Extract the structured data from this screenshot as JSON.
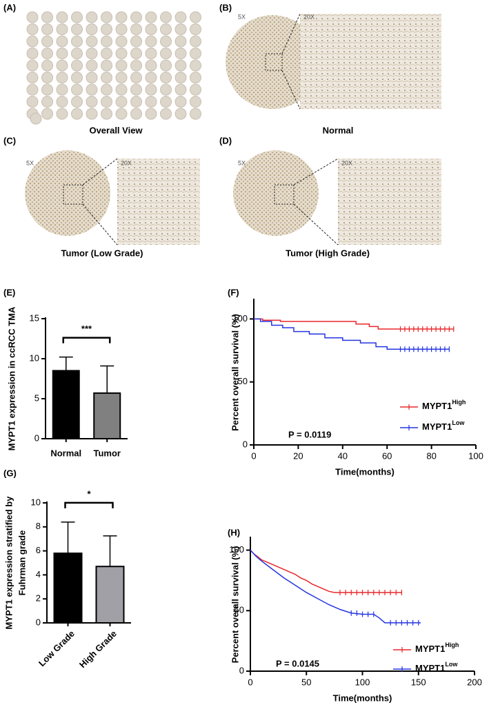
{
  "panels": [
    {
      "label": "(A)",
      "caption": "Overall View"
    },
    {
      "label": "(B)",
      "caption": "Normal",
      "magnifications": [
        "5X",
        "20X"
      ]
    },
    {
      "label": "(C)",
      "caption": "Tumor (Low Grade)",
      "magnifications": [
        "5X",
        "20X"
      ]
    },
    {
      "label": "(D)",
      "caption": "Tumor (High Grade)",
      "magnifications": [
        "5X",
        "20X"
      ]
    }
  ],
  "chart_data": [
    {
      "type": "bar",
      "panel_label": "(E)",
      "y_label": [
        "MYPT1 expression in ccRCC TMA"
      ],
      "categories": [
        "Normal",
        "Tumor"
      ],
      "values": [
        8.5,
        5.7
      ],
      "errors": [
        1.7,
        3.4
      ],
      "colors": [
        "#000000",
        "#808080"
      ],
      "ylim": [
        0,
        15
      ],
      "yticks": [
        0,
        5,
        10,
        15
      ],
      "annotations": [
        "***"
      ]
    },
    {
      "type": "line",
      "panel_label": "(F)",
      "x_label": "Time(months)",
      "y_label": [
        "Percent overall survival (%)"
      ],
      "xlim": [
        0,
        100
      ],
      "xticks": [
        0,
        20,
        40,
        60,
        80,
        100
      ],
      "ylim": [
        0,
        115
      ],
      "yticks": [
        0,
        50,
        100
      ],
      "series": [
        {
          "name": "MYPT1",
          "name_sup": "High",
          "color": "#e8262a",
          "x": [
            0,
            4,
            4,
            12,
            12,
            46,
            46,
            52,
            52,
            56,
            56,
            90
          ],
          "values": [
            100,
            100,
            99,
            99,
            98,
            98,
            96,
            96,
            94,
            94,
            92,
            92
          ],
          "censored": [
            66,
            68,
            70,
            72,
            74,
            76,
            78,
            80,
            82,
            84,
            86,
            88,
            90
          ]
        },
        {
          "name": "MYPT1",
          "name_sup": "Low",
          "color": "#2433e0",
          "x": [
            0,
            3,
            3,
            8,
            8,
            13,
            13,
            18,
            18,
            25,
            25,
            32,
            32,
            40,
            40,
            48,
            48,
            55,
            55,
            60,
            60,
            88
          ],
          "values": [
            100,
            100,
            98,
            98,
            95,
            95,
            93,
            93,
            90,
            90,
            88,
            88,
            85,
            85,
            83,
            83,
            81,
            81,
            78,
            78,
            76,
            76
          ],
          "censored": [
            66,
            68,
            70,
            72,
            74,
            76,
            78,
            80,
            82,
            84,
            86,
            88
          ]
        }
      ],
      "annotations": [
        "P = 0.0119"
      ]
    },
    {
      "type": "bar",
      "panel_label": "(G)",
      "y_label": [
        "MYPT1 expression stratified by",
        "Fuhrman grade"
      ],
      "categories": [
        "Low Grade",
        "High Grade"
      ],
      "values": [
        5.8,
        4.7
      ],
      "errors": [
        2.6,
        2.55
      ],
      "colors": [
        "#000000",
        "#a0a0a6"
      ],
      "ylim": [
        0,
        10
      ],
      "yticks": [
        0,
        2,
        4,
        6,
        8,
        10
      ],
      "annotations": [
        "*"
      ]
    },
    {
      "type": "line",
      "panel_label": "(H)",
      "x_label": "Time(months)",
      "y_label": [
        "Percent overall survival (%)"
      ],
      "xlim": [
        0,
        200
      ],
      "xticks": [
        0,
        50,
        100,
        150,
        200
      ],
      "ylim": [
        0,
        110
      ],
      "yticks": [
        0,
        50,
        100
      ],
      "series": [
        {
          "name": "MYPT1",
          "name_sup": "High",
          "color": "#e8262a",
          "x": [
            0,
            3,
            6,
            10,
            15,
            20,
            25,
            30,
            35,
            40,
            45,
            50,
            55,
            60,
            65,
            70,
            75,
            135
          ],
          "values": [
            100,
            97,
            95,
            92,
            90,
            88,
            86,
            84,
            82,
            80,
            77,
            75,
            72,
            70,
            68,
            66,
            65,
            65
          ],
          "censored": [
            80,
            85,
            90,
            95,
            100,
            105,
            110,
            115,
            120,
            125,
            130,
            135
          ]
        },
        {
          "name": "MYPT1",
          "name_sup": "Low",
          "color": "#2433e0",
          "x": [
            0,
            5,
            10,
            20,
            30,
            40,
            50,
            60,
            70,
            80,
            90,
            100,
            110,
            115,
            120,
            152
          ],
          "values": [
            100,
            95,
            91,
            84,
            77,
            71,
            65,
            60,
            55,
            51,
            48,
            47,
            47,
            44,
            40,
            40
          ],
          "censored": [
            90,
            95,
            100,
            105,
            110,
            125,
            130,
            135,
            140,
            145,
            150
          ]
        }
      ],
      "annotations": [
        "P = 0.0145"
      ]
    }
  ]
}
